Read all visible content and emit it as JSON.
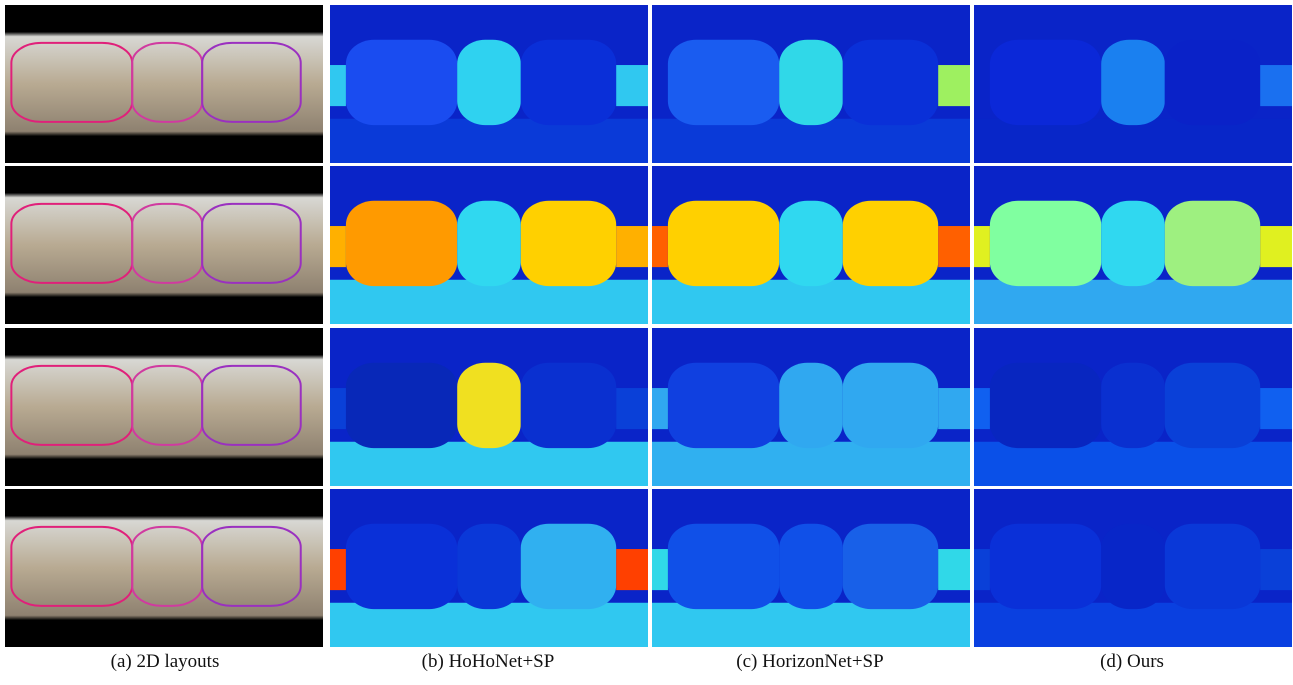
{
  "captions": [
    "(a) 2D layouts",
    "(b) HoHoNet+SP",
    "(c) HorizonNet+SP",
    "(d) Ours"
  ]
}
